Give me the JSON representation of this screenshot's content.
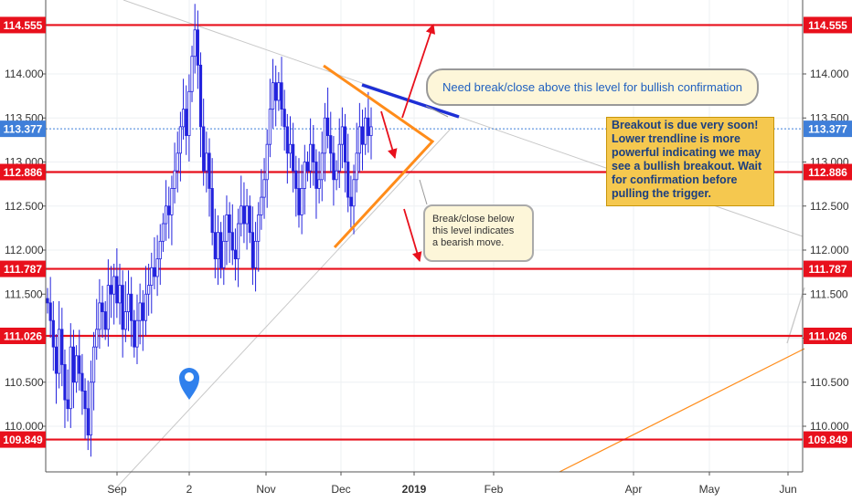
{
  "chart_data": {
    "type": "candlestick",
    "x_ticks": [
      "Sep",
      "2",
      "Nov",
      "Dec",
      "2019",
      "Feb",
      "Apr",
      "May",
      "Jun"
    ],
    "y_ticks": [
      110.0,
      110.5,
      111.0,
      111.5,
      112.0,
      112.5,
      113.0,
      113.5,
      114.0
    ],
    "y_tick_labels": [
      "110.000",
      "110.500",
      "111.000",
      "111.500",
      "112.000",
      "112.500",
      "113.000",
      "113.500",
      "114.000"
    ],
    "ylim": [
      109.59,
      114.86
    ],
    "current_price": {
      "value": 113.377,
      "label": "113.377"
    },
    "levels": [
      {
        "value": 114.555,
        "label": "114.555"
      },
      {
        "value": 112.886,
        "label": "112.886"
      },
      {
        "value": 111.787,
        "label": "111.787"
      },
      {
        "value": 111.026,
        "label": "111.026"
      },
      {
        "value": 109.849,
        "label": "109.849"
      }
    ],
    "close_series": [
      111.4,
      111.2,
      110.9,
      110.6,
      111.1,
      110.7,
      110.3,
      110.2,
      110.9,
      110.5,
      110.8,
      110.6,
      110.4,
      110.2,
      109.9,
      110.5,
      110.9,
      111.1,
      111.4,
      111.3,
      111.1,
      111.6,
      111.5,
      111.7,
      111.4,
      111.6,
      111.1,
      111.3,
      111.5,
      111.2,
      110.9,
      111.2,
      111.4,
      111.2,
      111.5,
      111.6,
      111.8,
      111.7,
      111.9,
      112.1,
      112.3,
      112.5,
      112.4,
      112.7,
      112.9,
      113.1,
      113.4,
      113.6,
      113.3,
      113.8,
      114.2,
      114.5,
      114.1,
      113.4,
      112.9,
      113.1,
      112.7,
      112.2,
      111.9,
      112.2,
      111.8,
      112.1,
      112.4,
      112.2,
      112.0,
      111.9,
      112.3,
      112.5,
      112.3,
      112.5,
      112.2,
      111.8,
      112.1,
      112.4,
      112.6,
      112.8,
      113.2,
      113.6,
      113.9,
      113.7,
      113.9,
      113.6,
      113.4,
      113.1,
      113.2,
      112.9,
      112.7,
      112.4,
      112.7,
      113.0,
      112.9,
      113.2,
      113.0,
      112.7,
      112.8,
      113.1,
      113.5,
      113.3,
      113.1,
      112.8,
      112.9,
      113.2,
      113.4,
      113.0,
      112.6,
      112.5,
      112.8,
      113.1,
      113.4,
      113.2,
      113.5,
      113.3,
      113.4
    ]
  },
  "annotations": {
    "top_note": "Need break/close above this level for bullish confirmation",
    "right_note_lines": [
      "Breakout is due very soon!",
      "Lower trendline is more",
      "powerful indicating we may",
      "see a bullish breakout. Wait",
      "for confirmation before",
      "pulling the trigger."
    ],
    "mid_note_lines": [
      "Break/close below",
      "this level indicates",
      "a bearish move."
    ]
  },
  "colors": {
    "level_line": "#e8101c",
    "level_badge": "#e8101c",
    "current_badge": "#3f7fd9",
    "candle": "#2222dd",
    "triangle": "#ff8c1a",
    "resistance": "#1d2fd6",
    "arrow": "#e8101c",
    "trendline": "#c8c8c8",
    "marker": "#2f80ed"
  },
  "icons": {
    "location_marker": "map-pin-icon"
  }
}
